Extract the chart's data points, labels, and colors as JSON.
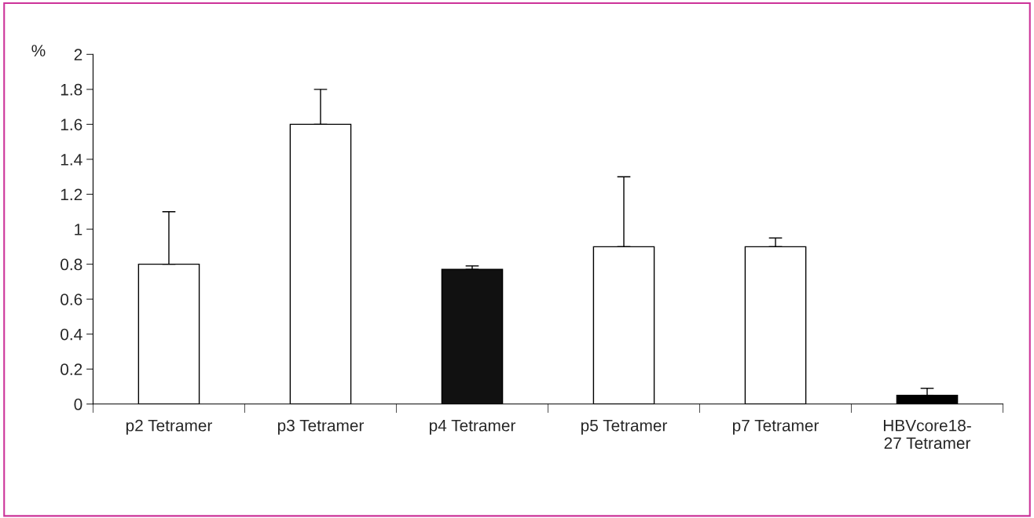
{
  "chart_data": {
    "type": "bar",
    "ylabel": "%",
    "categories": [
      "p2 Tetramer",
      "p3 Tetramer",
      "p4 Tetramer",
      "p5 Tetramer",
      "p7 Tetramer",
      "HBVcore18-\n27 Tetramer"
    ],
    "values": [
      0.8,
      1.6,
      0.77,
      0.9,
      0.9,
      0.05
    ],
    "errors": [
      [
        0.8,
        1.1
      ],
      [
        1.6,
        1.8
      ],
      [
        0.77,
        0.79
      ],
      [
        0.9,
        1.3
      ],
      [
        0.9,
        0.95
      ],
      [
        0.05,
        0.09
      ]
    ],
    "colors": [
      "#ffffff",
      "#ffffff",
      "#111111",
      "#ffffff",
      "#ffffff",
      "#000000"
    ],
    "ylim": [
      0,
      2
    ],
    "yticks": [
      0,
      0.2,
      0.4,
      0.6,
      0.8,
      1,
      1.2,
      1.4,
      1.6,
      1.8,
      2
    ],
    "grid": false
  }
}
